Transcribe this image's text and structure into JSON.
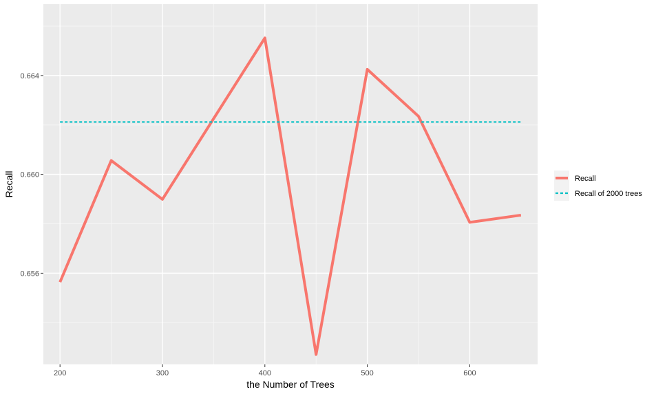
{
  "chart_data": {
    "type": "line",
    "title": "",
    "xlabel": "the Number of Trees",
    "ylabel": "Recall",
    "xlim": [
      183.75,
      666.25
    ],
    "ylim": [
      0.65231,
      0.66689
    ],
    "x_ticks": [
      200,
      300,
      400,
      500,
      600
    ],
    "y_ticks": [
      0.656,
      0.66,
      0.664
    ],
    "y_tick_labels": [
      "0.656",
      "0.660",
      "0.664"
    ],
    "grid": true,
    "legend_position": "right",
    "series": [
      {
        "name": "Recall",
        "style": "solid",
        "color": "#F8766D",
        "x": [
          200,
          250,
          300,
          350,
          400,
          450,
          500,
          550,
          600,
          650
        ],
        "y": [
          0.65564,
          0.66056,
          0.65899,
          0.66226,
          0.66552,
          0.65271,
          0.66425,
          0.66235,
          0.65806,
          0.65835
        ]
      },
      {
        "name": "Recall of 2000 trees",
        "style": "dashed",
        "color": "#00BFC4",
        "x": [
          200,
          650
        ],
        "y": [
          0.66212,
          0.66212
        ]
      }
    ]
  },
  "colors": {
    "panel_background": "#EBEBEB",
    "major_grid": "#FFFFFF",
    "minor_grid": "#F5F5F5",
    "legend_key_background": "#F2F2F2"
  }
}
